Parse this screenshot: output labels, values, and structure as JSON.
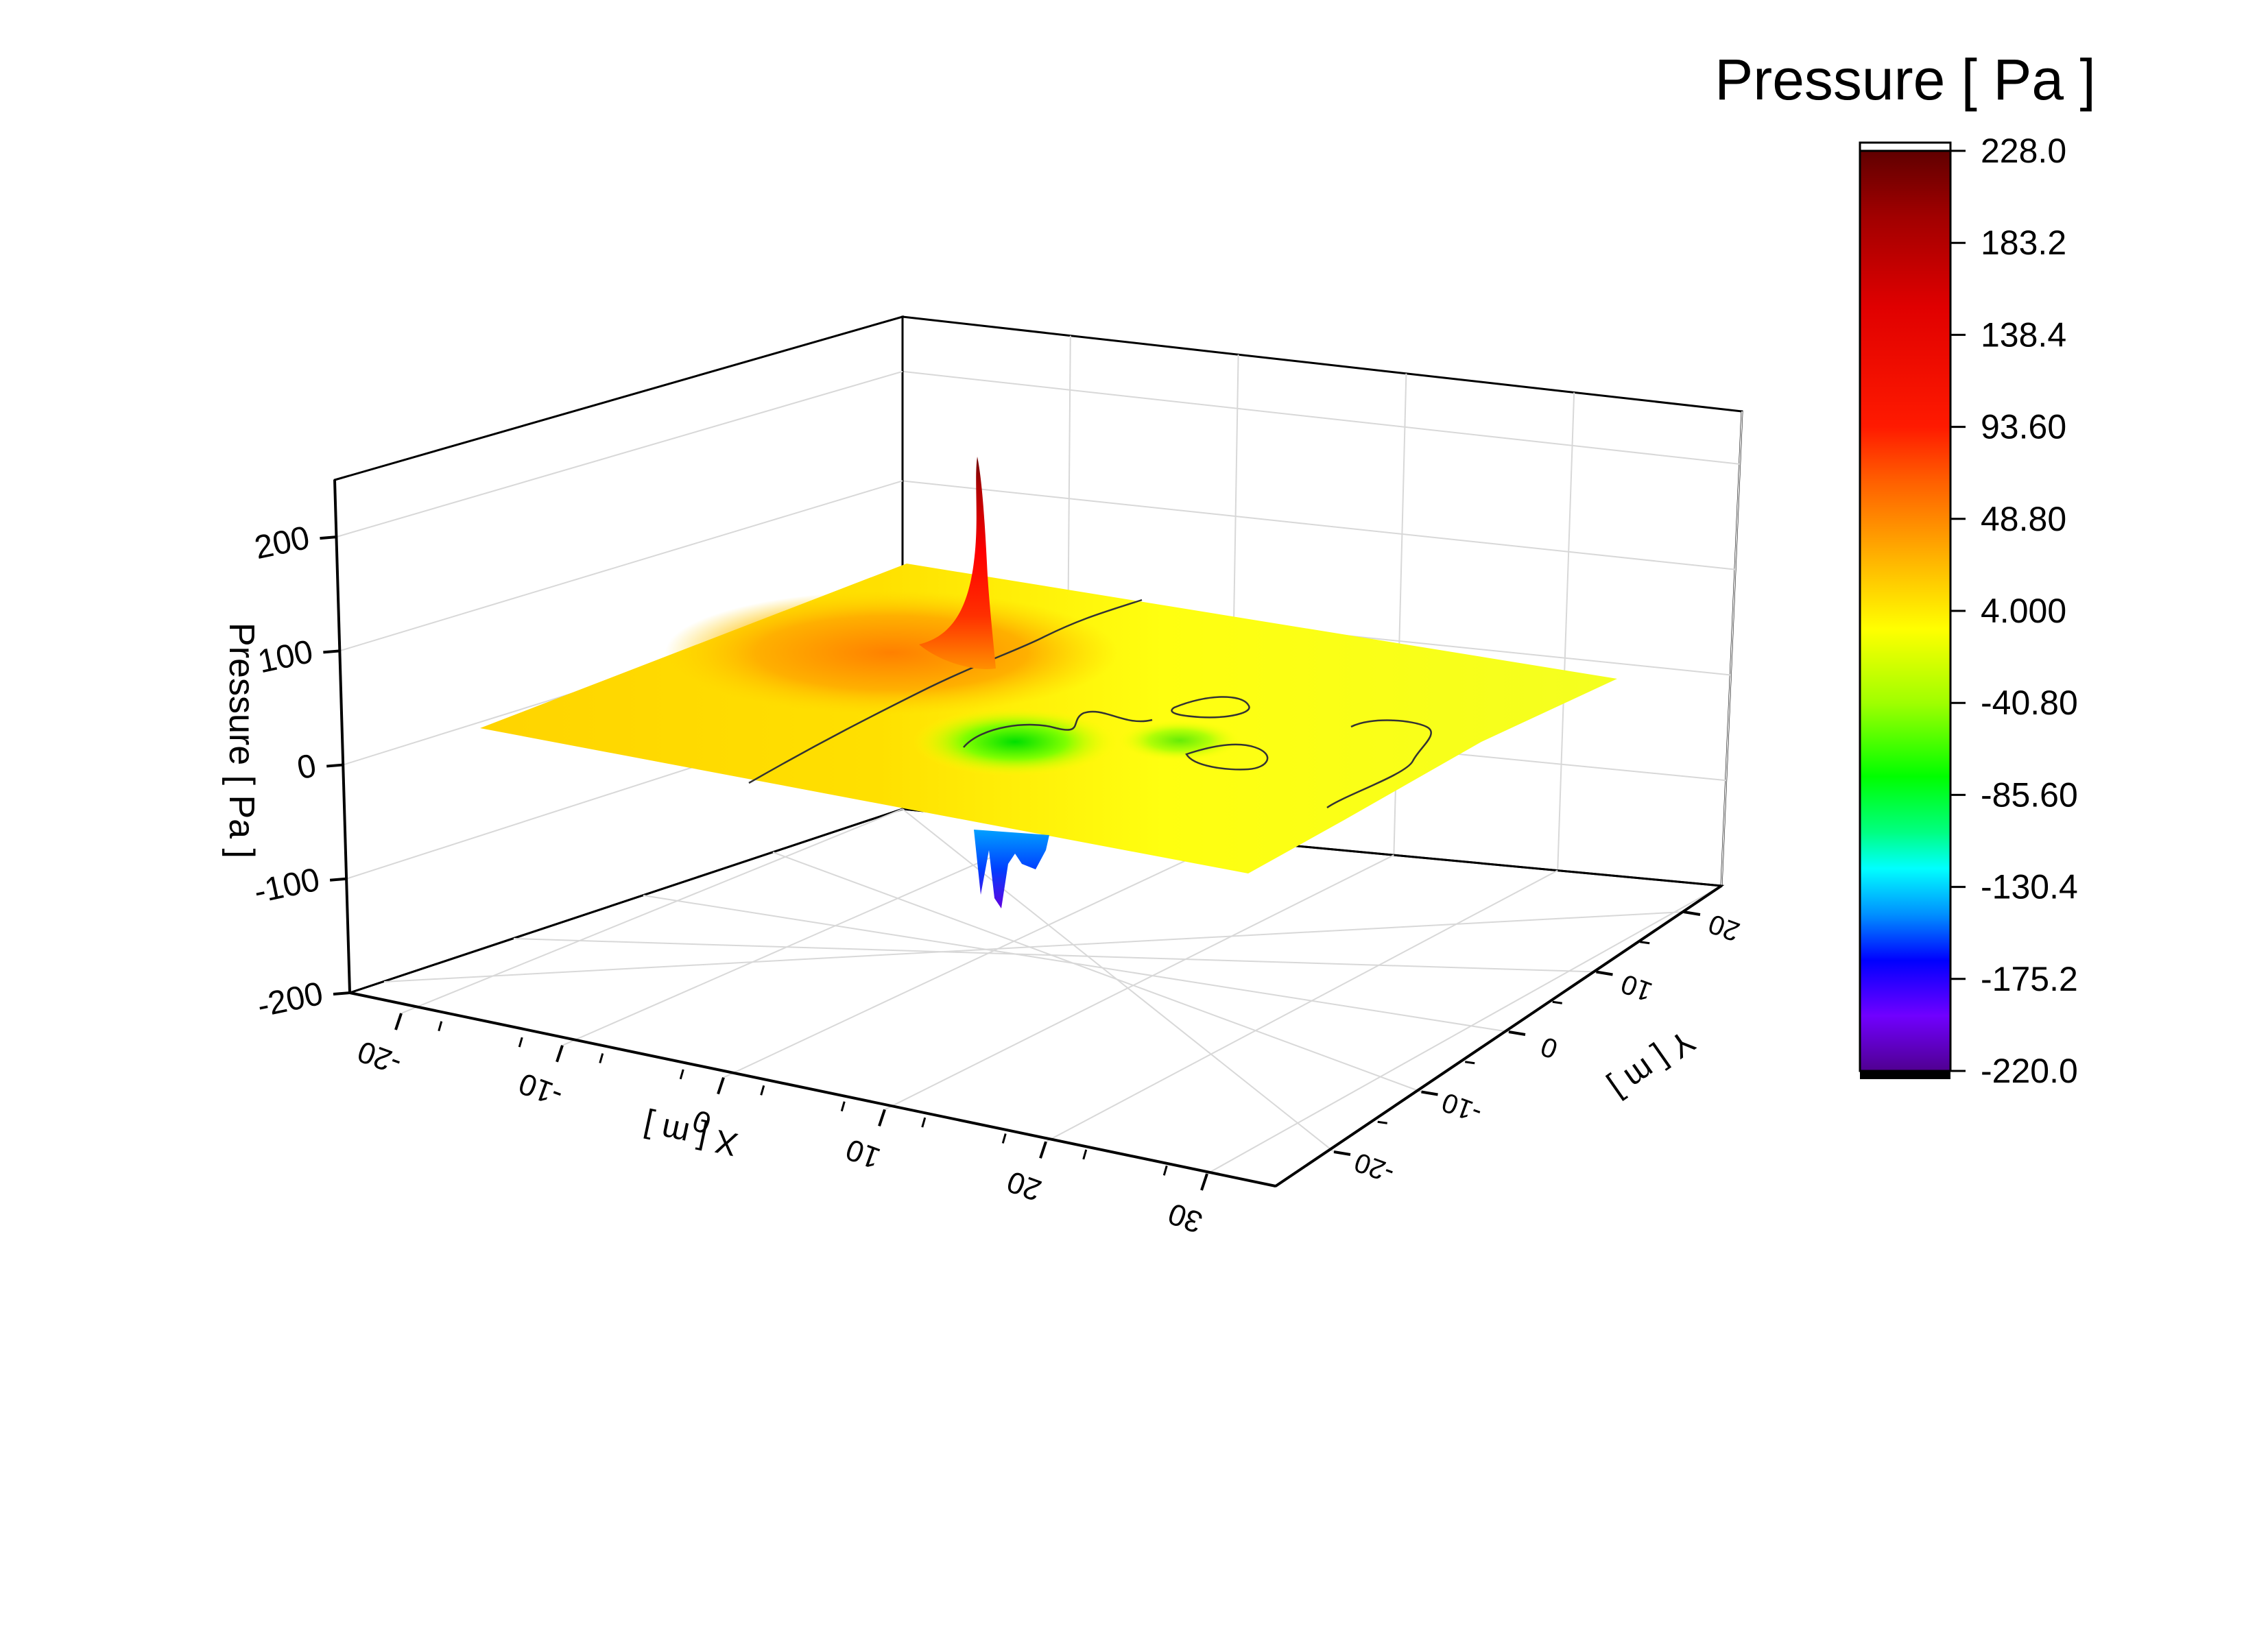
{
  "chart_data": {
    "type": "3d-surface",
    "title": "",
    "colorbar": {
      "title": "Pressure [ Pa ]",
      "ticks": [
        "228.0",
        "183.2",
        "138.4",
        "93.60",
        "48.80",
        "4.000",
        "-40.80",
        "-85.60",
        "-130.4",
        "-175.2",
        "-220.0"
      ],
      "min": -220.0,
      "max": 228.0,
      "colormap": [
        "#4b0082",
        "#7a00ff",
        "#0000ff",
        "#0080ff",
        "#00ffff",
        "#00ff00",
        "#ffff00",
        "#ffa500",
        "#ff0000",
        "#b00000",
        "#600000"
      ]
    },
    "axes": {
      "x": {
        "label": "X [ m ]",
        "ticks": [
          "-20",
          "-10",
          "0",
          "10",
          "20",
          "30"
        ],
        "range": [
          -20,
          30
        ]
      },
      "y": {
        "label": "Y [ m ]",
        "ticks": [
          "-20",
          "-10",
          "0",
          "10",
          "20"
        ],
        "range": [
          -20,
          20
        ]
      },
      "z": {
        "label": "Pressure [ Pa ]",
        "ticks": [
          "-200",
          "-100",
          "0",
          "100",
          "200"
        ],
        "range": [
          -200,
          250
        ]
      }
    },
    "grid": true,
    "features": [
      {
        "name": "positive peak",
        "x": -3,
        "y": 15,
        "value": 228
      },
      {
        "name": "negative trough",
        "x": 0,
        "y": 10,
        "value": -220
      },
      {
        "name": "baseline plateau",
        "value": 4
      }
    ]
  }
}
